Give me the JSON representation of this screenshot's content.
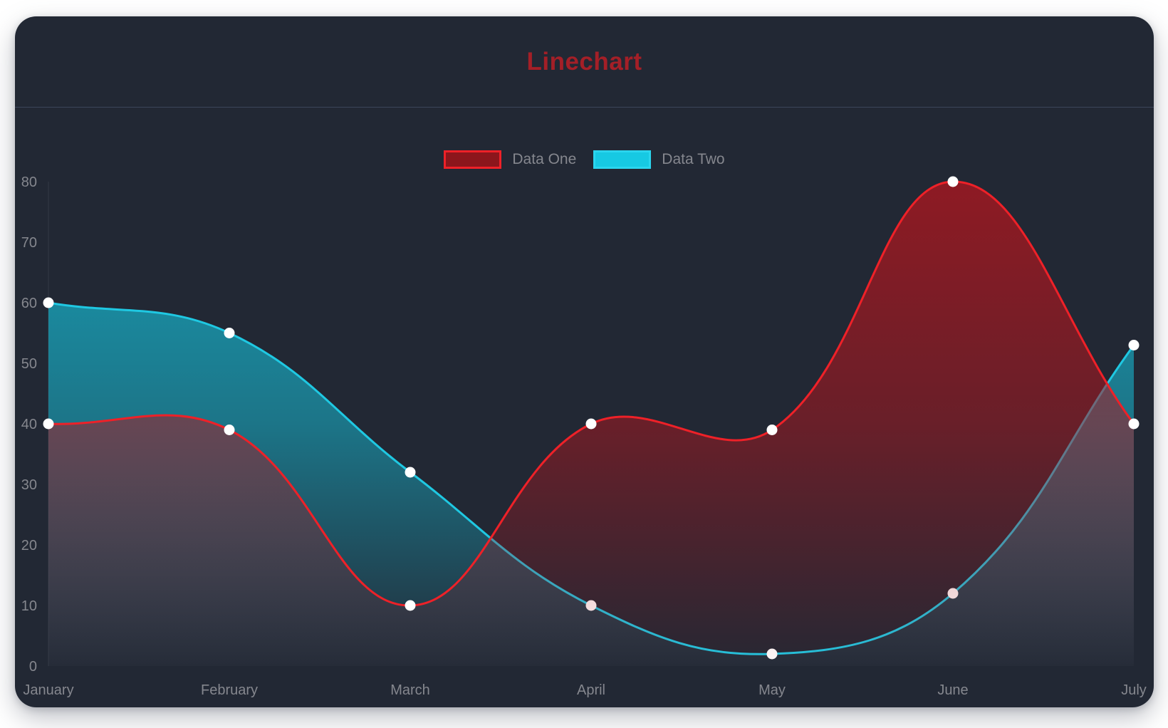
{
  "page": {
    "background": "#ffffff"
  },
  "card": {
    "background": "#222834",
    "divider_color": "#3c455a"
  },
  "header": {
    "title": "Linechart",
    "title_color": "#a41f27"
  },
  "legend": {
    "position": "top-center"
  },
  "chart_data": {
    "type": "line",
    "title": "Linechart",
    "categories": [
      "January",
      "February",
      "March",
      "April",
      "May",
      "June",
      "July"
    ],
    "y_ticks": [
      0,
      10,
      20,
      30,
      40,
      50,
      60,
      70,
      80
    ],
    "ylim": [
      0,
      80
    ],
    "grid": false,
    "legend_position": "top-center",
    "smoothing": 0.4,
    "point_color": "#ffffff",
    "point_radius": 7.5,
    "axis_label_color": "#85878e",
    "axis_line_color": "rgba(255,255,255,0.08)",
    "series": [
      {
        "name": "Data One",
        "values": [
          40,
          39,
          10,
          40,
          39,
          80,
          40
        ],
        "line_color": "#ee2128",
        "fill_color_rgb": "176,22,30",
        "legend_fill": "#8c161c",
        "legend_border": "#ee2128"
      },
      {
        "name": "Data Two",
        "values": [
          60,
          55,
          32,
          10,
          2,
          12,
          53
        ],
        "line_color": "#1fc8e2",
        "fill_color_rgb": "22,194,220",
        "legend_fill": "#17c9e3",
        "legend_border": "#2bd5ee"
      }
    ]
  }
}
